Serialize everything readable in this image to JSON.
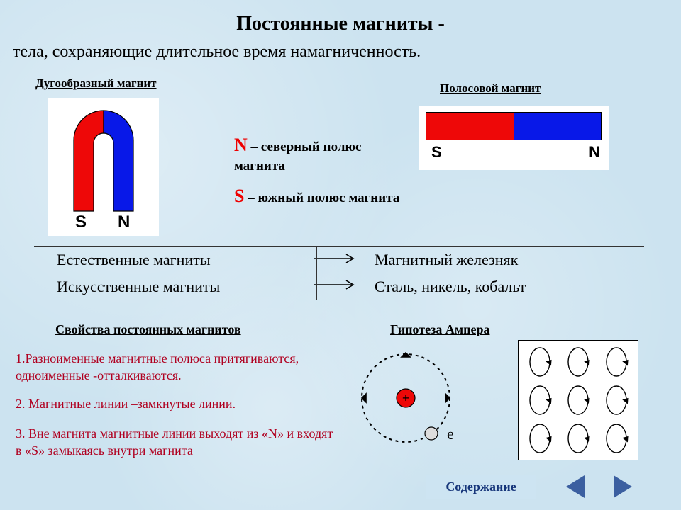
{
  "title": "Постоянные  магниты -",
  "subtitle": "тела,  сохраняющие  длительное  время  намагниченность.",
  "horseshoe_label": "Дугообразный  магнит",
  "bar_label": "Полосовой  магнит",
  "horseshoe": {
    "s_label": "S",
    "n_label": "N",
    "s_color": "#ee0808",
    "n_color": "#0818e8",
    "bg": "#ffffff"
  },
  "bar_magnet": {
    "s_label": "S",
    "n_label": "N",
    "s_color": "#ee0808",
    "n_color": "#0818e8",
    "bg": "#ffffff"
  },
  "pole_n": {
    "letter": "N",
    "text": " – северный  полюс магнита",
    "color": "#ee0000"
  },
  "pole_s": {
    "letter": "S",
    "text": " – южный  полюс магнита",
    "color": "#ee0000"
  },
  "types": {
    "rows": [
      {
        "left": "Естественные  магниты",
        "right": "Магнитный  железняк"
      },
      {
        "left": "Искусственные магниты",
        "right": "Сталь, никель, кобальт"
      }
    ],
    "arrow_color": "#000000"
  },
  "props_header": "Свойства  постоянных  магнитов",
  "ampere_header": "Гипотеза   Ампера",
  "properties": [
    "1.Разноименные  магнитные  полюса притягиваются,  одноименные  -отталкиваются.",
    "2.  Магнитные  линии –замкнутые  линии.",
    "3.  Вне магнита  магнитные  линии  выходят  из  «N»   и  входят  в  «S»  замыкаясь  внутри  магнита"
  ],
  "atom": {
    "nucleus_color": "#ee0808",
    "plus_color": "#000000",
    "orbit_color": "#000000",
    "electron_fill": "#dddddd",
    "electron_label": "e",
    "dash": "4,5"
  },
  "ampere_grid": {
    "loop_stroke": "#000000",
    "arrow_color": "#000000",
    "bg": "#ffffff"
  },
  "contents_button": "Содержание",
  "nav_color": "#3b5fa0"
}
